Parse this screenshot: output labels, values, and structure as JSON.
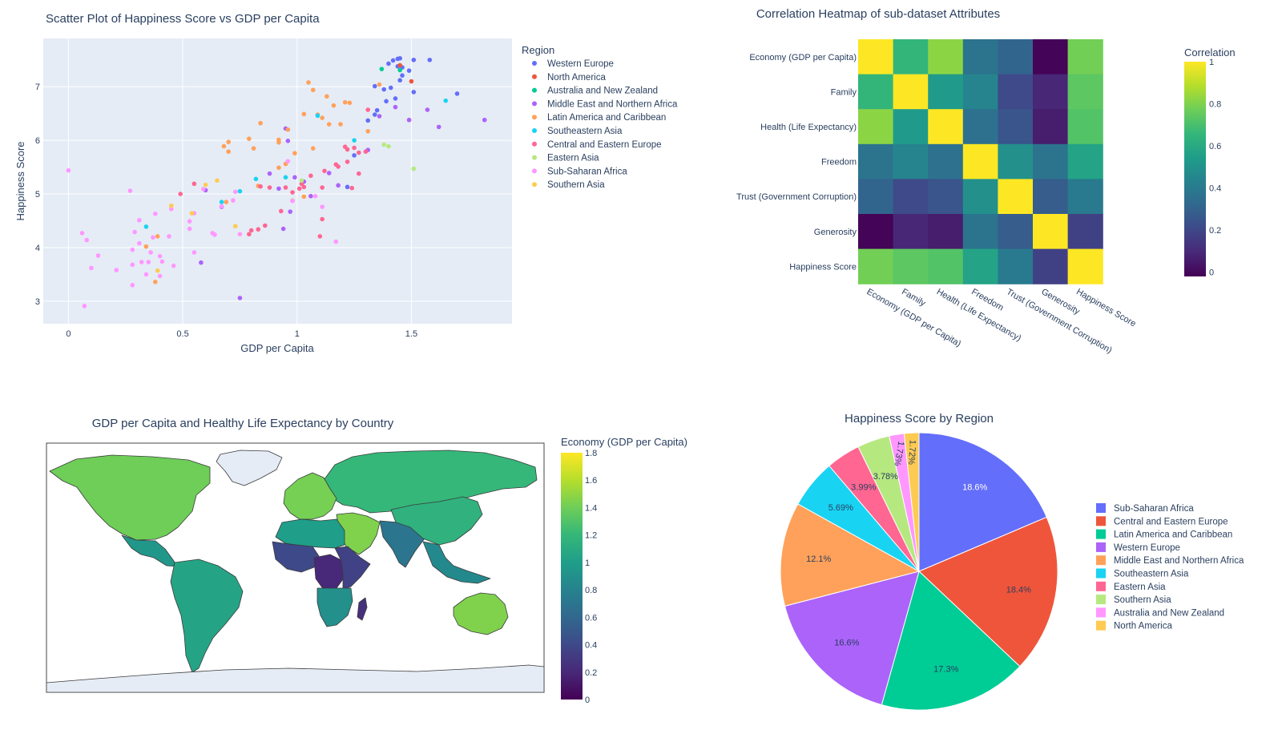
{
  "chart_data": [
    {
      "type": "scatter",
      "title": "Scatter Plot of Happiness Score vs GDP per Capita",
      "xlabel": "GDP per Capita",
      "ylabel": "Happiness Score",
      "xlim": [
        -0.11,
        1.94
      ],
      "ylim": [
        2.58,
        7.9
      ],
      "xticks": [
        0,
        0.5,
        1,
        1.5
      ],
      "xtick_labels": [
        "0",
        "0.5",
        "1",
        "1.5"
      ],
      "yticks": [
        3,
        4,
        5,
        6,
        7
      ],
      "ytick_labels": [
        "3",
        "4",
        "5",
        "6",
        "7"
      ],
      "grid": true,
      "legend_title": "Region",
      "legend_position": "right",
      "series": [
        {
          "name": "Western Europe",
          "color": "#636efa",
          "points": [
            [
              1.45,
              7.53
            ],
            [
              1.44,
              7.52
            ],
            [
              1.42,
              7.49
            ],
            [
              1.51,
              7.5
            ],
            [
              1.58,
              7.5
            ],
            [
              1.4,
              7.43
            ],
            [
              1.46,
              7.36
            ],
            [
              1.44,
              7.38
            ],
            [
              1.49,
              7.3
            ],
            [
              1.46,
              7.21
            ],
            [
              1.45,
              7.12
            ],
            [
              1.41,
              6.98
            ],
            [
              1.38,
              6.95
            ],
            [
              1.34,
              7.01
            ],
            [
              1.51,
              6.9
            ],
            [
              1.7,
              6.87
            ],
            [
              1.43,
              6.78
            ],
            [
              1.39,
              6.73
            ],
            [
              1.35,
              6.56
            ],
            [
              1.34,
              6.48
            ],
            [
              1.31,
              6.37
            ],
            [
              1.25,
              5.72
            ],
            [
              1.22,
              5.13
            ]
          ]
        },
        {
          "name": "North America",
          "color": "#ef553b",
          "points": [
            [
              1.45,
              7.4
            ],
            [
              1.5,
              7.1
            ]
          ]
        },
        {
          "name": "Australia and New Zealand",
          "color": "#00cc96",
          "points": [
            [
              1.45,
              7.31
            ],
            [
              1.37,
              7.33
            ]
          ]
        },
        {
          "name": "Middle East and Northern Africa",
          "color": "#ab63fa",
          "points": [
            [
              1.57,
              6.57
            ],
            [
              1.62,
              6.25
            ],
            [
              1.82,
              6.38
            ],
            [
              1.43,
              6.62
            ],
            [
              1.49,
              6.38
            ],
            [
              1.36,
              6.45
            ],
            [
              1.31,
              5.82
            ],
            [
              1.14,
              5.39
            ],
            [
              1.18,
              5.16
            ],
            [
              1.03,
              5.23
            ],
            [
              0.96,
              5.99
            ],
            [
              0.95,
              6.22
            ],
            [
              0.88,
              5.38
            ],
            [
              0.99,
              5.31
            ],
            [
              0.92,
              5.1
            ],
            [
              1.06,
              4.96
            ],
            [
              0.97,
              4.67
            ],
            [
              0.94,
              4.35
            ],
            [
              0.75,
              3.06
            ],
            [
              0.6,
              5.07
            ],
            [
              0.67,
              4.76
            ],
            [
              0.58,
              3.72
            ]
          ]
        },
        {
          "name": "Latin America and Caribbean",
          "color": "#ffa15a",
          "points": [
            [
              1.36,
              7.04
            ],
            [
              1.05,
              7.08
            ],
            [
              1.07,
              6.94
            ],
            [
              1.13,
              6.82
            ],
            [
              1.16,
              6.65
            ],
            [
              1.21,
              6.71
            ],
            [
              1.23,
              6.7
            ],
            [
              1.03,
              6.49
            ],
            [
              1.09,
              6.48
            ],
            [
              1.11,
              6.42
            ],
            [
              1.14,
              6.3
            ],
            [
              1.19,
              6.3
            ],
            [
              1.31,
              6.17
            ],
            [
              0.96,
              6.2
            ],
            [
              0.92,
              6.01
            ],
            [
              0.92,
              5.96
            ],
            [
              0.84,
              6.32
            ],
            [
              0.79,
              6.03
            ],
            [
              0.81,
              5.85
            ],
            [
              1.07,
              5.85
            ],
            [
              0.99,
              5.76
            ],
            [
              0.95,
              5.56
            ],
            [
              0.92,
              5.49
            ],
            [
              0.7,
              5.97
            ],
            [
              0.68,
              5.89
            ],
            [
              0.7,
              5.79
            ],
            [
              0.83,
              5.15
            ],
            [
              1.03,
              4.95
            ],
            [
              0.69,
              4.85
            ],
            [
              0.39,
              4.21
            ],
            [
              0.34,
              4.02
            ],
            [
              0.38,
              3.36
            ]
          ]
        },
        {
          "name": "Southeastern Asia",
          "color": "#19d3f3",
          "points": [
            [
              1.65,
              6.74
            ],
            [
              1.25,
              6.0
            ],
            [
              1.09,
              6.46
            ],
            [
              0.95,
              5.31
            ],
            [
              0.82,
              5.28
            ],
            [
              0.75,
              5.05
            ],
            [
              0.67,
              4.85
            ],
            [
              0.34,
              4.39
            ]
          ]
        },
        {
          "name": "Central and Eastern Europe",
          "color": "#ff6692",
          "points": [
            [
              1.31,
              6.57
            ],
            [
              1.3,
              5.79
            ],
            [
              1.27,
              5.77
            ],
            [
              1.21,
              5.88
            ],
            [
              1.22,
              5.83
            ],
            [
              1.25,
              5.86
            ],
            [
              1.22,
              5.6
            ],
            [
              1.18,
              5.51
            ],
            [
              1.17,
              5.55
            ],
            [
              1.12,
              5.43
            ],
            [
              1.11,
              5.12
            ],
            [
              1.06,
              5.34
            ],
            [
              1.02,
              5.19
            ],
            [
              1.03,
              5.13
            ],
            [
              1.01,
              5.1
            ],
            [
              0.98,
              5.03
            ],
            [
              0.95,
              5.12
            ],
            [
              0.88,
              5.12
            ],
            [
              0.84,
              5.14
            ],
            [
              1.27,
              5.38
            ],
            [
              1.24,
              5.11
            ],
            [
              1.11,
              4.53
            ],
            [
              1.1,
              4.21
            ],
            [
              0.93,
              4.68
            ],
            [
              0.86,
              4.41
            ],
            [
              0.83,
              4.34
            ],
            [
              0.79,
              4.25
            ],
            [
              0.8,
              4.32
            ],
            [
              0.55,
              5.19
            ],
            [
              0.49,
              5.0
            ]
          ]
        },
        {
          "name": "Eastern Asia",
          "color": "#b6e880",
          "points": [
            [
              1.38,
              5.92
            ],
            [
              1.4,
              5.89
            ],
            [
              1.51,
              5.47
            ],
            [
              1.02,
              5.25
            ],
            [
              0.98,
              4.88
            ]
          ]
        },
        {
          "name": "Sub-Saharan Africa",
          "color": "#ff97ff",
          "points": [
            [
              1.08,
              4.96
            ],
            [
              1.11,
              4.76
            ],
            [
              0.72,
              4.88
            ],
            [
              0.67,
              4.77
            ],
            [
              0.75,
              4.25
            ],
            [
              0.63,
              4.27
            ],
            [
              0.59,
              5.09
            ],
            [
              0.55,
              4.64
            ],
            [
              0.53,
              4.49
            ],
            [
              0.45,
              4.72
            ],
            [
              0.27,
              5.06
            ],
            [
              0.0,
              5.44
            ],
            [
              0.53,
              4.35
            ],
            [
              0.55,
              3.91
            ],
            [
              0.64,
              4.24
            ],
            [
              0.38,
              4.63
            ],
            [
              0.37,
              4.19
            ],
            [
              0.31,
              4.51
            ],
            [
              0.29,
              4.29
            ],
            [
              0.44,
              4.21
            ],
            [
              0.4,
              3.84
            ],
            [
              0.41,
              3.74
            ],
            [
              0.46,
              3.66
            ],
            [
              0.32,
              3.73
            ],
            [
              0.35,
              3.73
            ],
            [
              0.4,
              3.47
            ],
            [
              0.34,
              3.5
            ],
            [
              0.28,
              3.68
            ],
            [
              0.36,
              3.91
            ],
            [
              0.31,
              4.08
            ],
            [
              0.21,
              3.58
            ],
            [
              0.13,
              3.85
            ],
            [
              0.1,
              3.62
            ],
            [
              0.28,
              3.96
            ],
            [
              0.08,
              4.14
            ],
            [
              0.06,
              4.27
            ],
            [
              0.28,
              3.3
            ],
            [
              0.07,
              2.91
            ],
            [
              1.17,
              4.11
            ],
            [
              0.73,
              5.04
            ],
            [
              0.98,
              4.87
            ],
            [
              0.96,
              5.61
            ]
          ]
        },
        {
          "name": "Southern Asia",
          "color": "#fecb52",
          "points": [
            [
              0.65,
              5.25
            ],
            [
              0.6,
              5.17
            ],
            [
              0.54,
              4.64
            ],
            [
              0.45,
              4.78
            ],
            [
              0.73,
              4.4
            ],
            [
              0.39,
              3.57
            ]
          ]
        }
      ]
    },
    {
      "type": "heatmap",
      "title": "Correlation Heatmap of sub-dataset Attributes",
      "labels": [
        "Economy (GDP per Capita)",
        "Family",
        "Health (Life Expectancy)",
        "Freedom",
        "Trust (Government Corruption)",
        "Generosity",
        "Happiness Score"
      ],
      "matrix": [
        [
          1.0,
          0.65,
          0.82,
          0.37,
          0.31,
          -0.01,
          0.78
        ],
        [
          0.65,
          1.0,
          0.53,
          0.44,
          0.21,
          0.09,
          0.74
        ],
        [
          0.82,
          0.53,
          1.0,
          0.36,
          0.25,
          0.06,
          0.72
        ],
        [
          0.37,
          0.44,
          0.36,
          1.0,
          0.49,
          0.37,
          0.57
        ],
        [
          0.31,
          0.21,
          0.25,
          0.49,
          1.0,
          0.28,
          0.4
        ],
        [
          -0.01,
          0.09,
          0.06,
          0.37,
          0.28,
          1.0,
          0.18
        ],
        [
          0.78,
          0.74,
          0.72,
          0.57,
          0.4,
          0.18,
          1.0
        ]
      ],
      "colorbar_title": "Correlation",
      "colorbar_range": [
        -0.02,
        1
      ],
      "colorbar_ticks": [
        0,
        0.2,
        0.4,
        0.6,
        0.8,
        1
      ],
      "colorbar_tick_labels": [
        "0",
        "0.2",
        "0.4",
        "0.6",
        "0.8",
        "1"
      ],
      "colorscale": "viridis"
    },
    {
      "type": "map",
      "title": "GDP per Capita and Healthy Life Expectancy by Country",
      "colorbar_title": "Economy (GDP per Capita)",
      "colorbar_range": [
        0,
        1.8
      ],
      "colorbar_ticks": [
        0,
        0.2,
        0.4,
        0.6,
        0.8,
        1,
        1.2,
        1.4,
        1.6,
        1.8
      ],
      "colorbar_tick_labels": [
        "0",
        "0.2",
        "0.4",
        "0.6",
        "0.8",
        "1",
        "1.2",
        "1.4",
        "1.6",
        "1.8"
      ],
      "colorscale": "viridis",
      "regions": [
        {
          "name": "North America",
          "value": 1.4
        },
        {
          "name": "Central America",
          "value": 0.95
        },
        {
          "name": "South America",
          "value": 1.05
        },
        {
          "name": "Western Europe",
          "value": 1.42
        },
        {
          "name": "Eastern Europe and Russia",
          "value": 1.2
        },
        {
          "name": "Middle East",
          "value": 1.45
        },
        {
          "name": "Northern Africa",
          "value": 1.0
        },
        {
          "name": "West Africa",
          "value": 0.4
        },
        {
          "name": "Central Africa",
          "value": 0.2
        },
        {
          "name": "East Africa",
          "value": 0.35
        },
        {
          "name": "Southern Africa",
          "value": 0.9
        },
        {
          "name": "South Asia",
          "value": 0.7
        },
        {
          "name": "East Asia",
          "value": 1.15
        },
        {
          "name": "Southeast Asia",
          "value": 0.85
        },
        {
          "name": "Australia",
          "value": 1.45
        },
        {
          "name": "Madagascar",
          "value": 0.25
        }
      ]
    },
    {
      "type": "pie",
      "title": "Happiness Score by Region",
      "legend_position": "right",
      "slices": [
        {
          "label": "Sub-Saharan Africa",
          "value": 18.6,
          "text": "18.6%",
          "color": "#636efa"
        },
        {
          "label": "Central and Eastern Europe",
          "value": 18.4,
          "text": "18.4%",
          "color": "#ef553b"
        },
        {
          "label": "Latin America and Caribbean",
          "value": 17.3,
          "text": "17.3%",
          "color": "#00cc96"
        },
        {
          "label": "Western Europe",
          "value": 16.6,
          "text": "16.6%",
          "color": "#ab63fa"
        },
        {
          "label": "Middle East and Northern Africa",
          "value": 12.1,
          "text": "12.1%",
          "color": "#ffa15a"
        },
        {
          "label": "Southeastern Asia",
          "value": 5.69,
          "text": "5.69%",
          "color": "#19d3f3"
        },
        {
          "label": "Eastern Asia",
          "value": 3.99,
          "text": "3.99%",
          "color": "#ff6692"
        },
        {
          "label": "Southern Asia",
          "value": 3.78,
          "text": "3.78%",
          "color": "#b6e880"
        },
        {
          "label": "Australia and New Zealand",
          "value": 1.73,
          "text": "1.73%",
          "color": "#ff97ff"
        },
        {
          "label": "North America",
          "value": 1.72,
          "text": "1.72%",
          "color": "#fecb52"
        }
      ]
    }
  ]
}
